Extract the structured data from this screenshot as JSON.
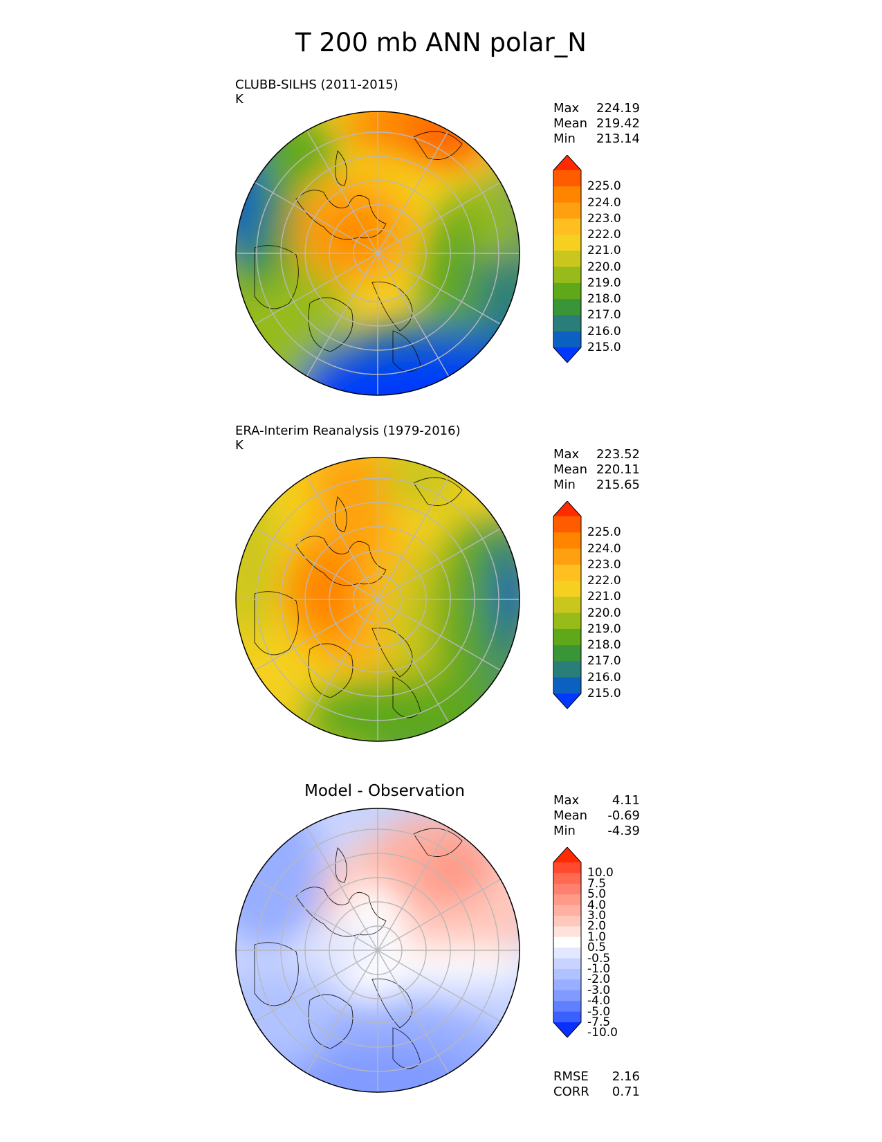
{
  "title": "T 200 mb ANN polar_N",
  "panels": [
    {
      "title": "CLUBB-SILHS (2011-2015)",
      "units": "K",
      "stats": [
        {
          "label": "Max",
          "value": "224.19"
        },
        {
          "label": "Mean",
          "value": "219.42"
        },
        {
          "label": "Min",
          "value": "213.14"
        }
      ],
      "colorbar": {
        "ticks": [
          "225.0",
          "224.0",
          "223.0",
          "222.0",
          "221.0",
          "220.0",
          "219.0",
          "218.0",
          "217.0",
          "216.0",
          "215.0"
        ],
        "colors": [
          "#ff2a00",
          "#ff5c00",
          "#ff8400",
          "#ffa010",
          "#ffbf20",
          "#f5d020",
          "#c9c61e",
          "#96bb1a",
          "#5fa81a",
          "#3a9438",
          "#2a7e7a",
          "#0b60c0",
          "#0038ff"
        ]
      }
    },
    {
      "title": "ERA-Interim Reanalysis (1979-2016)",
      "units": "K",
      "stats": [
        {
          "label": "Max",
          "value": "223.52"
        },
        {
          "label": "Mean",
          "value": "220.11"
        },
        {
          "label": "Min",
          "value": "215.65"
        }
      ],
      "colorbar": {
        "ticks": [
          "225.0",
          "224.0",
          "223.0",
          "222.0",
          "221.0",
          "220.0",
          "219.0",
          "218.0",
          "217.0",
          "216.0",
          "215.0"
        ],
        "colors": [
          "#ff2a00",
          "#ff5c00",
          "#ff8400",
          "#ffa010",
          "#ffbf20",
          "#f5d020",
          "#c9c61e",
          "#96bb1a",
          "#5fa81a",
          "#3a9438",
          "#2a7e7a",
          "#0b60c0",
          "#0038ff"
        ]
      }
    },
    {
      "title": "Model - Observation",
      "stats": [
        {
          "label": "Max",
          "value": "4.11"
        },
        {
          "label": "Mean",
          "value": "-0.69"
        },
        {
          "label": "Min",
          "value": "-4.39"
        }
      ],
      "colorbar": {
        "ticks": [
          "10.0",
          "7.5",
          "5.0",
          "4.0",
          "3.0",
          "2.0",
          "1.0",
          "0.5",
          "-0.5",
          "-1.0",
          "-2.0",
          "-3.0",
          "-4.0",
          "-5.0",
          "-7.5",
          "-10.0"
        ],
        "colors": [
          "#ff2a00",
          "#ff4a30",
          "#ff6a50",
          "#ff8070",
          "#ff9a88",
          "#ffb0a0",
          "#ffc8bc",
          "#ffe2dc",
          "#ffffff",
          "#e2e8ff",
          "#c8d4ff",
          "#b0c2ff",
          "#98aeff",
          "#809aff",
          "#6080ff",
          "#3a60ff",
          "#0a30ff"
        ]
      },
      "metrics": [
        {
          "label": "RMSE",
          "value": "2.16"
        },
        {
          "label": "CORR",
          "value": "0.71"
        }
      ]
    }
  ],
  "chart_data": [
    {
      "type": "heatmap",
      "title": "CLUBB-SILHS (2011-2015)",
      "units": "K",
      "projection": "north polar stereographic",
      "max": 224.19,
      "mean": 219.42,
      "min": 213.14,
      "levels": [
        215.0,
        216.0,
        217.0,
        218.0,
        219.0,
        220.0,
        221.0,
        222.0,
        223.0,
        224.0,
        225.0
      ],
      "extend": "both"
    },
    {
      "type": "heatmap",
      "title": "ERA-Interim Reanalysis (1979-2016)",
      "units": "K",
      "projection": "north polar stereographic",
      "max": 223.52,
      "mean": 220.11,
      "min": 215.65,
      "levels": [
        215.0,
        216.0,
        217.0,
        218.0,
        219.0,
        220.0,
        221.0,
        222.0,
        223.0,
        224.0,
        225.0
      ],
      "extend": "both"
    },
    {
      "type": "heatmap",
      "title": "Model - Observation",
      "projection": "north polar stereographic",
      "max": 4.11,
      "mean": -0.69,
      "min": -4.39,
      "rmse": 2.16,
      "corr": 0.71,
      "levels": [
        -10.0,
        -7.5,
        -5.0,
        -4.0,
        -3.0,
        -2.0,
        -1.0,
        -0.5,
        0.5,
        1.0,
        2.0,
        3.0,
        4.0,
        5.0,
        7.5,
        10.0
      ],
      "extend": "both"
    }
  ]
}
